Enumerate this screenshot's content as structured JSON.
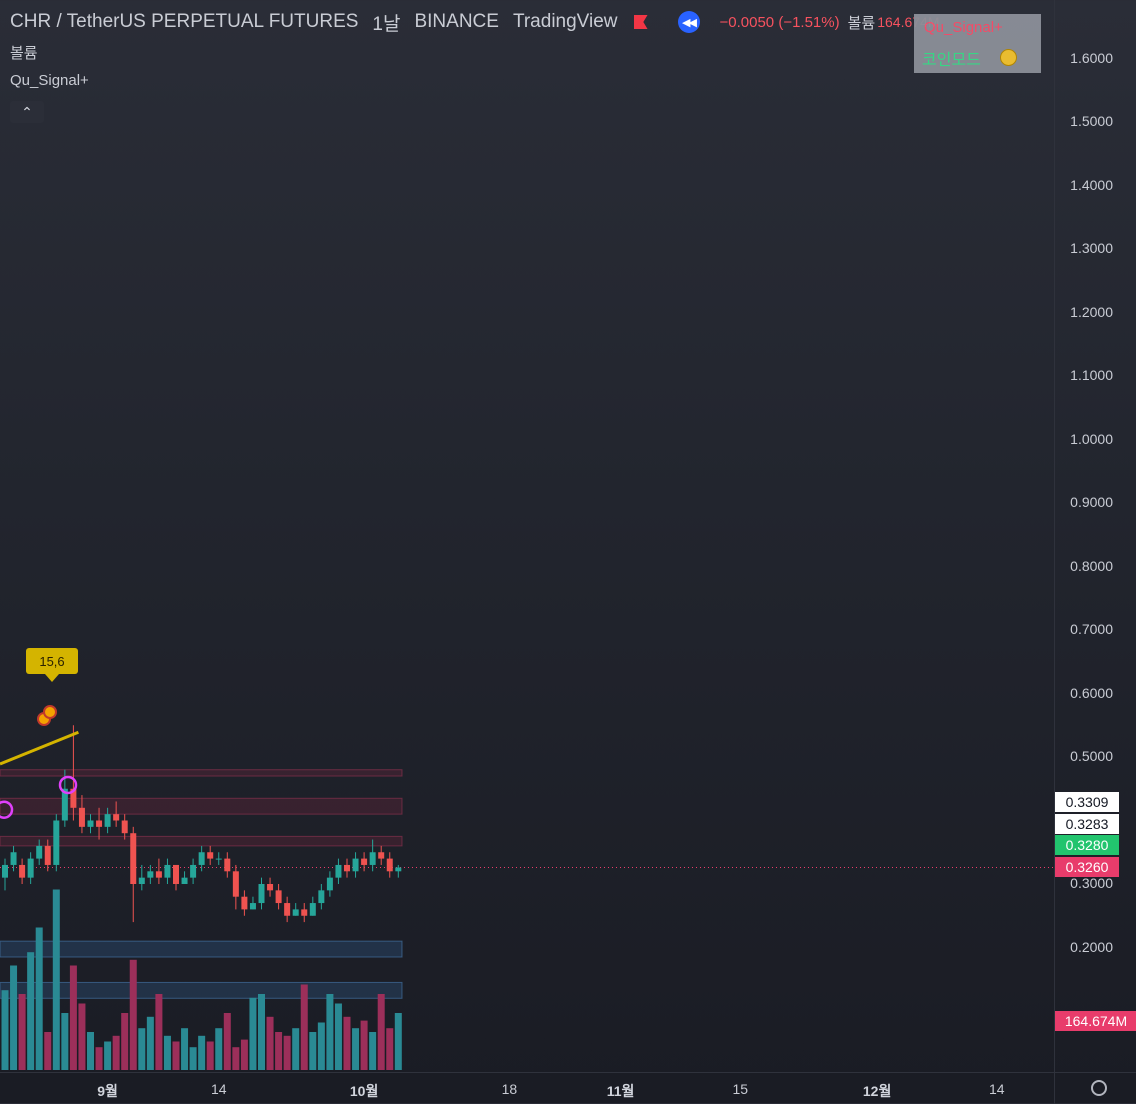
{
  "header": {
    "title": "CHR / TetherUS PERPETUAL FUTURES",
    "interval": "1날",
    "exchange": "BINANCE",
    "source": "TradingView",
    "change": "−0.0050 (−1.51%)",
    "volume_label": "볼륨",
    "volume_value": "164.674M"
  },
  "legend": {
    "volume_indicator": "볼륨",
    "signal_indicator": "Qu_Signal+",
    "collapse_glyph": "⌃"
  },
  "widget": {
    "title": "Qu_Signal+",
    "mode_label": "코인모드",
    "icon": "coin-icon"
  },
  "callout": {
    "label": "15,6"
  },
  "price_axis": {
    "ticks": [
      {
        "label": "1.6000",
        "value": 1.6
      },
      {
        "label": "1.5000",
        "value": 1.5
      },
      {
        "label": "1.4000",
        "value": 1.4
      },
      {
        "label": "1.3000",
        "value": 1.3
      },
      {
        "label": "1.2000",
        "value": 1.2
      },
      {
        "label": "1.1000",
        "value": 1.1
      },
      {
        "label": "1.0000",
        "value": 1.0
      },
      {
        "label": "0.9000",
        "value": 0.9
      },
      {
        "label": "0.8000",
        "value": 0.8
      },
      {
        "label": "0.7000",
        "value": 0.7
      },
      {
        "label": "0.6000",
        "value": 0.6
      },
      {
        "label": "0.5000",
        "value": 0.5
      },
      {
        "label": "0.3000",
        "value": 0.3
      },
      {
        "label": "0.2000",
        "value": 0.2
      }
    ],
    "tags": [
      {
        "label": "0.3309",
        "value": 0.3309,
        "bg": "#ffffff",
        "fg": "#131722"
      },
      {
        "label": "0.3283",
        "value": 0.3283,
        "bg": "#ffffff",
        "fg": "#131722"
      },
      {
        "label": "0.3280",
        "value": 0.328,
        "bg": "#22c46e",
        "fg": "#ffffff"
      },
      {
        "label": "0.3260",
        "value": 0.326,
        "bg": "#e83c6b",
        "fg": "#ffffff"
      },
      {
        "label": "164.674M",
        "value": 0.06,
        "bg": "#e83c6b",
        "fg": "#ffffff"
      }
    ]
  },
  "time_axis": {
    "ticks": [
      {
        "label": "9월",
        "bold": true,
        "idx": 12
      },
      {
        "label": "14",
        "bold": false,
        "idx": 25
      },
      {
        "label": "10월",
        "bold": true,
        "idx": 42
      },
      {
        "label": "18",
        "bold": false,
        "idx": 59
      },
      {
        "label": "11월",
        "bold": true,
        "idx": 72
      },
      {
        "label": "15",
        "bold": false,
        "idx": 86
      },
      {
        "label": "12월",
        "bold": true,
        "idx": 102
      },
      {
        "label": "14",
        "bold": false,
        "idx": 116
      }
    ]
  },
  "colors": {
    "up": "#26a69a",
    "down": "#ef5350",
    "vol_up": "#2a8a94",
    "vol_down": "#9c2f5a",
    "accent": "#2962ff"
  },
  "candles": [
    [
      0.31,
      0.33,
      0.29,
      0.34
    ],
    [
      0.33,
      0.35,
      0.32,
      0.36
    ],
    [
      0.33,
      0.31,
      0.3,
      0.34
    ],
    [
      0.31,
      0.34,
      0.3,
      0.35
    ],
    [
      0.34,
      0.36,
      0.33,
      0.37
    ],
    [
      0.36,
      0.33,
      0.32,
      0.37
    ],
    [
      0.33,
      0.4,
      0.32,
      0.41
    ],
    [
      0.4,
      0.45,
      0.39,
      0.48
    ],
    [
      0.45,
      0.42,
      0.4,
      0.55
    ],
    [
      0.42,
      0.39,
      0.38,
      0.44
    ],
    [
      0.39,
      0.4,
      0.38,
      0.41
    ],
    [
      0.4,
      0.39,
      0.37,
      0.42
    ],
    [
      0.39,
      0.41,
      0.38,
      0.42
    ],
    [
      0.41,
      0.4,
      0.39,
      0.43
    ],
    [
      0.4,
      0.38,
      0.37,
      0.41
    ],
    [
      0.38,
      0.3,
      0.24,
      0.39
    ],
    [
      0.3,
      0.31,
      0.29,
      0.33
    ],
    [
      0.31,
      0.32,
      0.3,
      0.33
    ],
    [
      0.32,
      0.31,
      0.3,
      0.34
    ],
    [
      0.31,
      0.33,
      0.3,
      0.34
    ],
    [
      0.33,
      0.3,
      0.29,
      0.33
    ],
    [
      0.3,
      0.31,
      0.3,
      0.32
    ],
    [
      0.31,
      0.33,
      0.3,
      0.34
    ],
    [
      0.33,
      0.35,
      0.32,
      0.36
    ],
    [
      0.35,
      0.34,
      0.33,
      0.36
    ],
    [
      0.34,
      0.34,
      0.33,
      0.35
    ],
    [
      0.34,
      0.32,
      0.31,
      0.35
    ],
    [
      0.32,
      0.28,
      0.26,
      0.33
    ],
    [
      0.28,
      0.26,
      0.25,
      0.29
    ],
    [
      0.26,
      0.27,
      0.26,
      0.28
    ],
    [
      0.27,
      0.3,
      0.26,
      0.31
    ],
    [
      0.3,
      0.29,
      0.28,
      0.31
    ],
    [
      0.29,
      0.27,
      0.26,
      0.3
    ],
    [
      0.27,
      0.25,
      0.24,
      0.28
    ],
    [
      0.25,
      0.26,
      0.25,
      0.27
    ],
    [
      0.26,
      0.25,
      0.24,
      0.27
    ],
    [
      0.25,
      0.27,
      0.25,
      0.28
    ],
    [
      0.27,
      0.29,
      0.26,
      0.3
    ],
    [
      0.29,
      0.31,
      0.28,
      0.32
    ],
    [
      0.31,
      0.33,
      0.3,
      0.34
    ],
    [
      0.33,
      0.32,
      0.31,
      0.34
    ],
    [
      0.32,
      0.34,
      0.31,
      0.35
    ],
    [
      0.34,
      0.33,
      0.32,
      0.35
    ],
    [
      0.33,
      0.35,
      0.32,
      0.37
    ],
    [
      0.35,
      0.34,
      0.33,
      0.36
    ],
    [
      0.34,
      0.32,
      0.31,
      0.35
    ],
    [
      0.32,
      0.326,
      0.31,
      0.33
    ]
  ],
  "volumes": [
    0.42,
    0.55,
    0.4,
    0.62,
    0.75,
    0.2,
    0.95,
    0.3,
    0.55,
    0.35,
    0.2,
    0.12,
    0.15,
    0.18,
    0.3,
    0.58,
    0.22,
    0.28,
    0.4,
    0.18,
    0.15,
    0.22,
    0.12,
    0.18,
    0.15,
    0.22,
    0.3,
    0.12,
    0.16,
    0.38,
    0.4,
    0.28,
    0.2,
    0.18,
    0.22,
    0.45,
    0.2,
    0.25,
    0.4,
    0.35,
    0.28,
    0.22,
    0.26,
    0.2,
    0.4,
    0.22,
    0.3
  ]
}
